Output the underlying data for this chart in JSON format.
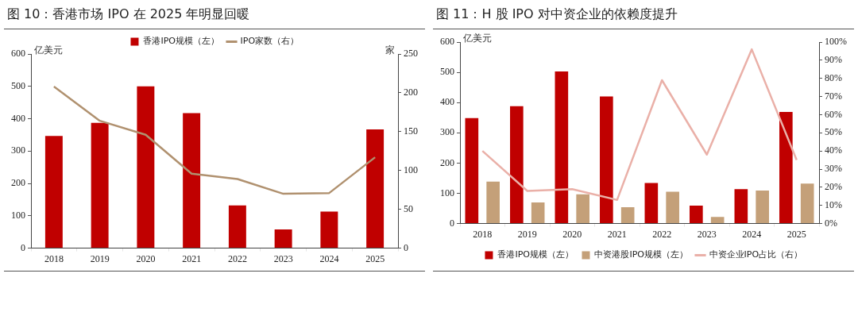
{
  "chart_data": [
    {
      "type": "bar",
      "title": "图 10：香港市场 IPO 在 2025 年明显回暖",
      "ylabel": "亿美元",
      "y2label": "家",
      "categories": [
        "2018",
        "2019",
        "2020",
        "2021",
        "2022",
        "2023",
        "2024",
        "2025"
      ],
      "series": [
        {
          "name": "香港IPO规模（左）",
          "color": "#c00000",
          "values": [
            347,
            387,
            500,
            417,
            132,
            58,
            113,
            367
          ]
        },
        {
          "name": "IPO家数（右）",
          "type": "line",
          "axis": "y2",
          "color": "#b0916f",
          "values": [
            208,
            164,
            146,
            96,
            89,
            70,
            71,
            117
          ]
        }
      ],
      "ylim": [
        0,
        600
      ],
      "yticks": [
        0,
        100,
        200,
        300,
        400,
        500,
        600
      ],
      "y2lim": [
        0,
        250
      ],
      "y2ticks": [
        0,
        50,
        100,
        150,
        200,
        250
      ],
      "legend": "top"
    },
    {
      "type": "bar",
      "title": "图 11：H 股 IPO 对中资企业的依赖度提升",
      "ylabel": "亿美元",
      "categories": [
        "2018",
        "2019",
        "2020",
        "2021",
        "2022",
        "2023",
        "2024",
        "2025"
      ],
      "series": [
        {
          "name": "香港IPO规模（左）",
          "color": "#c00000",
          "values": [
            349,
            388,
            503,
            420,
            134,
            59,
            114,
            369
          ]
        },
        {
          "name": "中资港股IPO规模（左）",
          "color": "#c4a079",
          "values": [
            139,
            70,
            97,
            54,
            105,
            22,
            109,
            132
          ]
        },
        {
          "name": "中资企业IPO占比（右）",
          "type": "line",
          "axis": "y2",
          "color": "#eab0a8",
          "values": [
            40,
            18,
            19,
            13,
            79,
            38,
            96,
            35
          ]
        }
      ],
      "ylim": [
        0,
        600
      ],
      "yticks": [
        0,
        100,
        200,
        300,
        400,
        500,
        600
      ],
      "y2lim": [
        0,
        100
      ],
      "y2ticks": [
        {
          "value": 0,
          "label": "0%"
        },
        {
          "value": 10,
          "label": "10%"
        },
        {
          "value": 20,
          "label": "20%"
        },
        {
          "value": 30,
          "label": "30%"
        },
        {
          "value": 40,
          "label": "40%"
        },
        {
          "value": 50,
          "label": "50%"
        },
        {
          "value": 60,
          "label": "60%"
        },
        {
          "value": 70,
          "label": "70%"
        },
        {
          "value": 80,
          "label": "80%"
        },
        {
          "value": 90,
          "label": "90%"
        },
        {
          "value": 100,
          "label": "100%"
        }
      ],
      "legend": "bottom"
    }
  ]
}
